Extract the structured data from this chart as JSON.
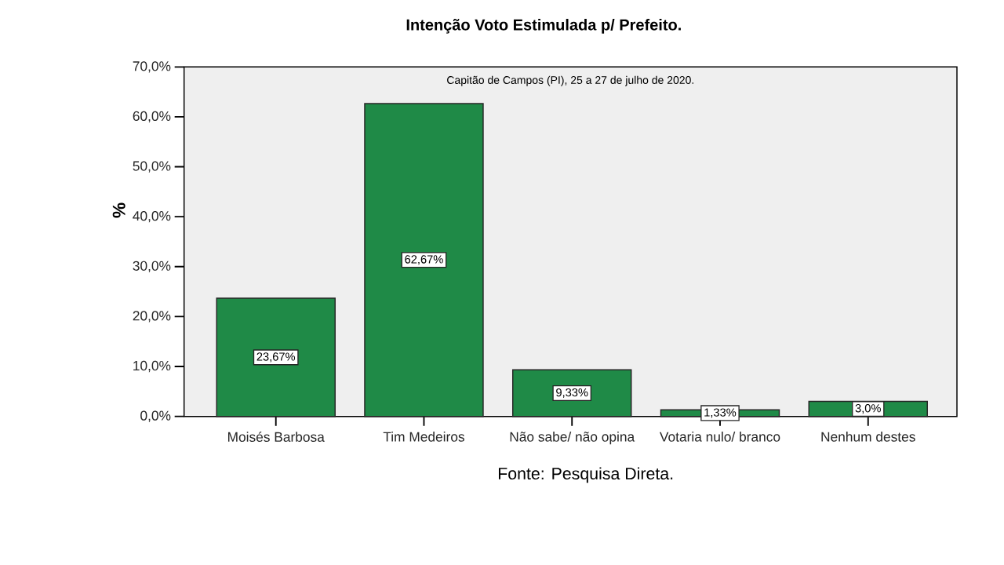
{
  "chart_data": {
    "type": "bar",
    "title": "Intenção Voto Estimulada p/ Prefeito.",
    "subtitle": "Capitão de Campos (PI), 25 a 27 de julho de 2020.",
    "ylabel": "%",
    "categories": [
      "Moisés Barbosa",
      "Tim Medeiros",
      "Não sabe/ não opina",
      "Votaria nulo/ branco",
      "Nenhum destes"
    ],
    "values": [
      23.67,
      62.67,
      9.33,
      1.33,
      3.0
    ],
    "value_labels": [
      "23,67%",
      "62,67%",
      "9,33%",
      "1,33%",
      "3,0%"
    ],
    "color": "#1f8a47",
    "ylim": [
      0,
      70
    ],
    "yticks": [
      {
        "value": 0,
        "label": "0,0%"
      },
      {
        "value": 10,
        "label": "10,0%"
      },
      {
        "value": 20,
        "label": "20,0%"
      },
      {
        "value": 30,
        "label": "30,0%"
      },
      {
        "value": 40,
        "label": "40,0%"
      },
      {
        "value": 50,
        "label": "50,0%"
      },
      {
        "value": 60,
        "label": "60,0%"
      },
      {
        "value": 70,
        "label": "70,0%"
      }
    ],
    "annotations": [
      "Fonte: Pesquisa Direta."
    ]
  }
}
